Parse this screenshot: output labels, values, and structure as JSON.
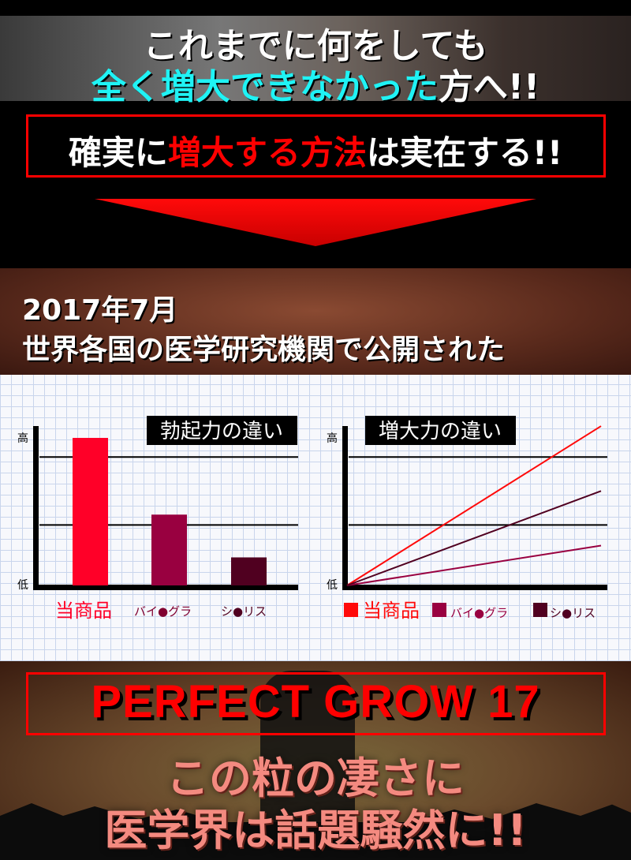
{
  "hero": {
    "line1": "これまでに何をしても",
    "line2_highlight": "全く増大できなかった",
    "line2_rest": "方へ!!"
  },
  "claim": {
    "part1": "確実に",
    "part2_highlight": "増大する方法",
    "part3": "は実在する!!"
  },
  "research": {
    "date": "2017年7月",
    "subtitle": "世界各国の医学研究機関で公開された"
  },
  "chart_data": [
    {
      "type": "bar",
      "title": "勃起力の違い",
      "ylabel_high": "高",
      "ylabel_low": "低",
      "categories": [
        "当商品",
        "バイ●グラ",
        "シ●リス"
      ],
      "values": [
        100,
        48,
        19
      ],
      "ylim": [
        0,
        100
      ],
      "gridlines": [
        41,
        87
      ],
      "colors": [
        "#ff0028",
        "#990040",
        "#500020"
      ]
    },
    {
      "type": "line",
      "title": "増大力の違い",
      "ylabel_high": "高",
      "ylabel_low": "低",
      "ylim": [
        0,
        100
      ],
      "gridlines": [
        41,
        87
      ],
      "series": [
        {
          "name": "当商品",
          "x": [
            0,
            1
          ],
          "y": [
            0,
            108
          ],
          "color": "#ff0a0a"
        },
        {
          "name": "バイ●グラ",
          "x": [
            0,
            1
          ],
          "y": [
            0,
            27
          ],
          "color": "#990040"
        },
        {
          "name": "シ●リス",
          "x": [
            0,
            1
          ],
          "y": [
            0,
            64
          ],
          "color": "#500020"
        }
      ],
      "legend": "bottom"
    }
  ],
  "product": {
    "name": "PERFECT GROW 17",
    "line1": "この粒の凄さに",
    "line2": "医学界は話題騒然に!!"
  }
}
